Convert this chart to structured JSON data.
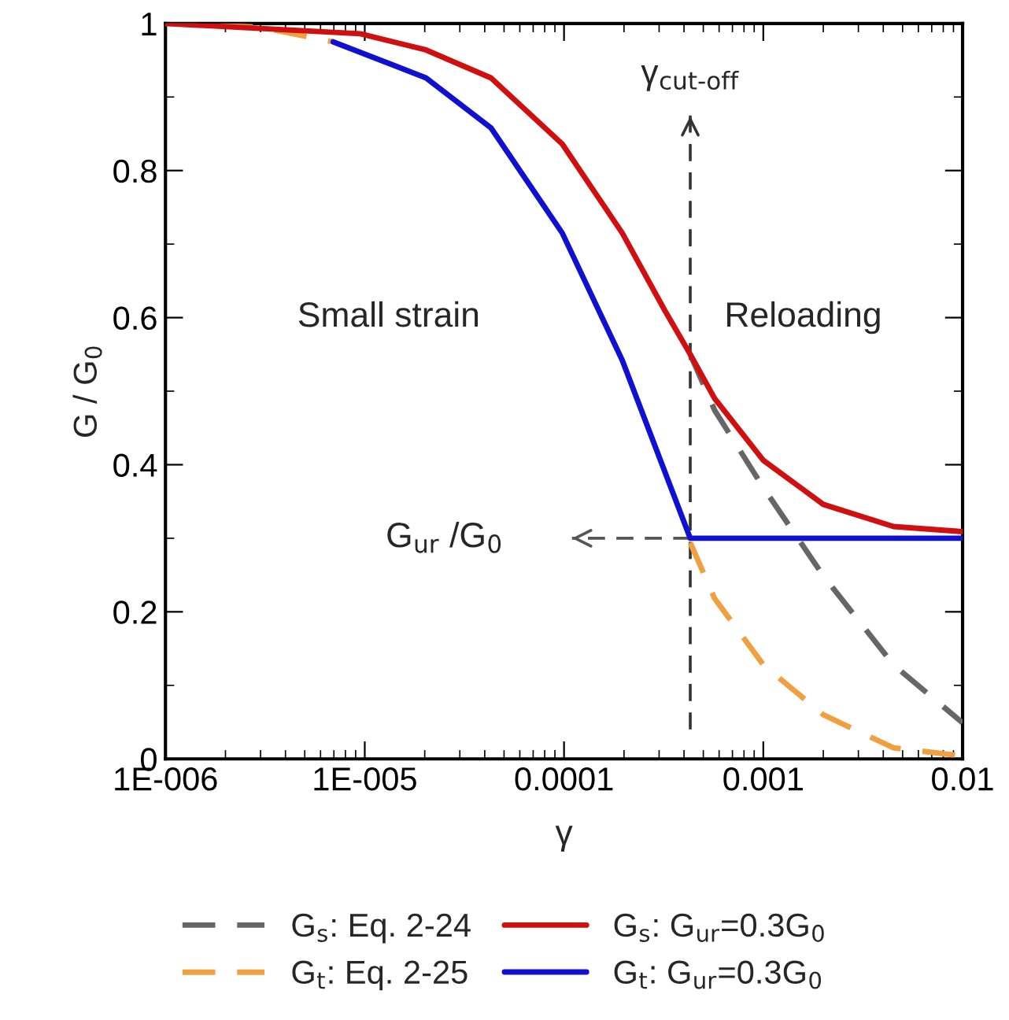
{
  "chart_data": {
    "type": "line",
    "xlabel": "γ",
    "ylabel": "G / G$_{0}$",
    "log": "x",
    "xlim": [
      1e-06,
      0.01
    ],
    "ylim": [
      0,
      1
    ],
    "xticks": [
      {
        "value": 1e-06,
        "label": "1E-006"
      },
      {
        "value": 1e-05,
        "label": "1E-005"
      },
      {
        "value": 0.0001,
        "label": "0.0001"
      },
      {
        "value": 0.001,
        "label": "0.001"
      },
      {
        "value": 0.01,
        "label": "0.01"
      }
    ],
    "yticks": [
      0,
      0.2,
      0.4,
      0.6,
      0.8,
      1
    ],
    "grid": false,
    "legend": "bottom",
    "series": [
      {
        "name": "G$_{s}$: Eq. 2-24",
        "color": "#666666",
        "line_style": "dashed",
        "x": [
          0.00043,
          0.00057,
          0.001,
          0.002,
          0.0045,
          0.01
        ],
        "values": [
          0.55,
          0.474,
          0.369,
          0.249,
          0.128,
          0.049
        ]
      },
      {
        "name": "G$_{t}$: Eq. 2-25",
        "color": "#f0a040",
        "line_style": "dashed",
        "x": [
          1e-06,
          3e-06,
          6.95e-06,
          0.0002,
          0.00043,
          0.00057,
          0.001,
          0.002,
          0.0045,
          0.01
        ],
        "values": [
          1.0,
          0.995,
          0.975,
          null,
          0.294,
          0.218,
          0.128,
          0.06,
          0.015,
          0.004
        ]
      },
      {
        "name": "G$_{s}$: G$_{ur}$=0.3G$_{0}$",
        "color": "#d01010",
        "line_style": "solid",
        "x": [
          1e-06,
          9.5e-06,
          2.03e-05,
          4.3e-05,
          9.8e-05,
          0.000196,
          0.00032,
          0.00043,
          0.00057,
          0.001,
          0.002,
          0.0045,
          0.01
        ],
        "values": [
          1.0,
          0.986,
          0.964,
          0.926,
          0.836,
          0.715,
          0.61,
          0.55,
          0.49,
          0.406,
          0.346,
          0.316,
          0.309
        ]
      },
      {
        "name": "G$_{t}$: G$_{ur}$=0.3G$_{0}$",
        "color": "#1010d0",
        "line_style": "solid",
        "x": [
          6.95e-06,
          2.03e-05,
          4.3e-05,
          9.8e-05,
          0.000196,
          0.00043,
          0.01
        ],
        "values": [
          0.975,
          0.926,
          0.858,
          0.715,
          0.542,
          0.3,
          0.3
        ]
      }
    ],
    "ref_lines": [
      {
        "axis": "x",
        "value": 0.00043,
        "label": "γ$_{cut-off}$",
        "line_style": "dashed"
      },
      {
        "axis": "y",
        "value": 0.3,
        "label": "G$_{ur}$ /G$_{0}$",
        "line_style": "dashed"
      }
    ],
    "annotations": [
      "Small strain",
      "Reloading"
    ]
  }
}
